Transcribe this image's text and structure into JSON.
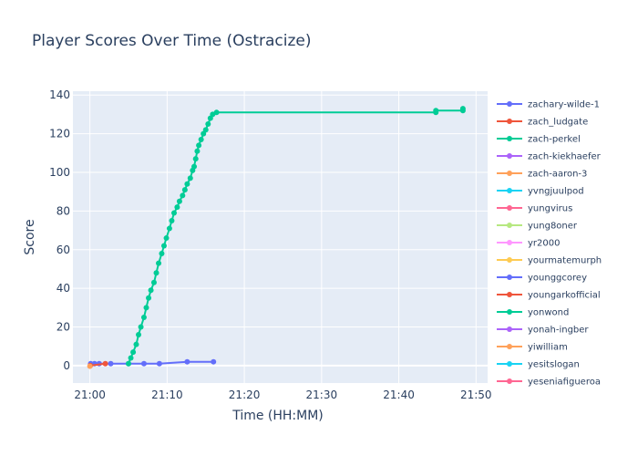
{
  "chart_data": {
    "type": "line",
    "title": "Player Scores Over Time (Ostracize)",
    "xlabel": "Time (HH:MM)",
    "ylabel": "Score",
    "x_ticks": [
      "21:00",
      "21:10",
      "21:20",
      "21:30",
      "21:40",
      "21:50"
    ],
    "x_range_minutes": [
      -2.2,
      51.5
    ],
    "ylim": [
      -9,
      142
    ],
    "y_ticks": [
      0,
      20,
      40,
      60,
      80,
      100,
      120,
      140
    ],
    "grid": true,
    "legend_position": "right",
    "series": [
      {
        "name": "zachary-wilde-1",
        "color": "#636efa",
        "points": [
          [
            0.1,
            1
          ],
          [
            0.6,
            1
          ],
          [
            1.2,
            1
          ],
          [
            2.7,
            1
          ],
          [
            5.0,
            1
          ],
          [
            7.0,
            1
          ],
          [
            9.0,
            1
          ],
          [
            12.6,
            2
          ],
          [
            16.0,
            2
          ]
        ]
      },
      {
        "name": "zach_ludgate",
        "color": "#ef553b",
        "points": [
          [
            0.05,
            0
          ],
          [
            2.0,
            1
          ]
        ]
      },
      {
        "name": "zach-perkel",
        "color": "#00cc96",
        "points": [
          [
            5.0,
            1
          ],
          [
            5.3,
            4
          ],
          [
            5.6,
            7
          ],
          [
            6.0,
            11
          ],
          [
            6.3,
            16
          ],
          [
            6.6,
            20
          ],
          [
            7.0,
            25
          ],
          [
            7.3,
            30
          ],
          [
            7.6,
            35
          ],
          [
            7.9,
            39
          ],
          [
            8.3,
            43
          ],
          [
            8.6,
            48
          ],
          [
            8.9,
            53
          ],
          [
            9.3,
            58
          ],
          [
            9.6,
            62
          ],
          [
            9.9,
            66
          ],
          [
            10.3,
            71
          ],
          [
            10.6,
            75
          ],
          [
            10.9,
            79
          ],
          [
            11.3,
            82
          ],
          [
            11.6,
            85
          ],
          [
            12.0,
            88
          ],
          [
            12.3,
            91
          ],
          [
            12.6,
            94
          ],
          [
            13.0,
            97
          ],
          [
            13.3,
            101
          ],
          [
            13.5,
            103
          ],
          [
            13.7,
            107
          ],
          [
            13.9,
            111
          ],
          [
            14.1,
            114
          ],
          [
            14.4,
            117
          ],
          [
            14.7,
            120
          ],
          [
            15.0,
            122
          ],
          [
            15.3,
            125
          ],
          [
            15.6,
            128
          ],
          [
            15.9,
            130
          ],
          [
            16.4,
            131
          ],
          [
            44.8,
            131
          ],
          [
            44.8,
            132
          ],
          [
            48.3,
            132
          ],
          [
            48.3,
            133
          ]
        ]
      },
      {
        "name": "zach-kiekhaefer",
        "color": "#ab63fa",
        "points": []
      },
      {
        "name": "zach-aaron-3",
        "color": "#ffa15a",
        "points": [
          [
            0.0,
            -0.3
          ]
        ]
      },
      {
        "name": "yvngjuulpod",
        "color": "#19d3f3",
        "points": []
      },
      {
        "name": "yungvirus",
        "color": "#ff6692",
        "points": []
      },
      {
        "name": "yung8oner",
        "color": "#b6e880",
        "points": []
      },
      {
        "name": "yr2000",
        "color": "#ff97ff",
        "points": []
      },
      {
        "name": "yourmatemurph",
        "color": "#fecb52",
        "points": []
      },
      {
        "name": "younggcorey",
        "color": "#636efa",
        "points": []
      },
      {
        "name": "youngarkofficial",
        "color": "#ef553b",
        "points": []
      },
      {
        "name": "yonwond",
        "color": "#00cc96",
        "points": []
      },
      {
        "name": "yonah-ingber",
        "color": "#ab63fa",
        "points": []
      },
      {
        "name": "yiwilliam",
        "color": "#ffa15a",
        "points": []
      },
      {
        "name": "yesitslogan",
        "color": "#19d3f3",
        "points": []
      },
      {
        "name": "yeseniafigueroa",
        "color": "#ff6692",
        "points": []
      }
    ]
  }
}
